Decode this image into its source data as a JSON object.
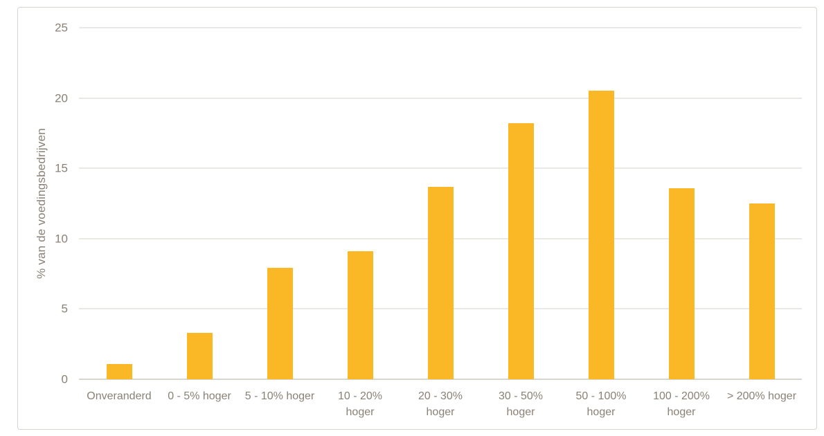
{
  "colors": {
    "bar": "#FBB826",
    "text": "#8A8175",
    "gridline": "#EAE8E4",
    "axis_line": "#D9D6D0",
    "panel_border": "#D8D5CF",
    "background": "#FFFFFF"
  },
  "chart_data": {
    "type": "bar",
    "title": "",
    "xlabel": "",
    "ylabel": "% van de voedingsbedrijven",
    "ylim": [
      0,
      25
    ],
    "yticks": [
      0,
      5,
      10,
      15,
      20,
      25
    ],
    "grid": "horizontal",
    "legend": "none",
    "bar_color": "#FBB826",
    "categories": [
      "Onveranderd",
      "0 - 5% hoger",
      "5 - 10% hoger",
      "10 - 20% hoger",
      "20 - 30% hoger",
      "30 - 50% hoger",
      "50 - 100% hoger",
      "100 - 200% hoger",
      "> 200% hoger"
    ],
    "categories_lines": [
      [
        "Onveranderd"
      ],
      [
        "0 - 5% hoger"
      ],
      [
        "5 - 10% hoger"
      ],
      [
        "10 - 20%",
        "hoger"
      ],
      [
        "20 - 30%",
        "hoger"
      ],
      [
        "30 - 50%",
        "hoger"
      ],
      [
        "50 - 100%",
        "hoger"
      ],
      [
        "100 - 200%",
        "hoger"
      ],
      [
        "> 200% hoger"
      ]
    ],
    "values": [
      1.1,
      3.3,
      7.9,
      9.1,
      13.7,
      18.2,
      20.5,
      13.6,
      12.5
    ]
  }
}
